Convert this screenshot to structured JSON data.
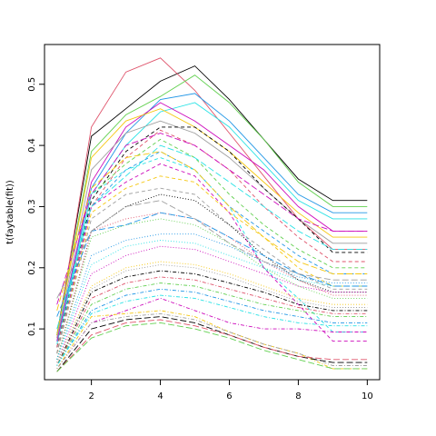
{
  "chart_data": {
    "type": "line",
    "title": "",
    "xlabel": "",
    "ylabel": "t(faytable(fit))",
    "xlim": [
      0.64,
      10.36
    ],
    "ylim": [
      0.017,
      0.565
    ],
    "x": [
      1,
      2,
      3,
      4,
      5,
      6,
      7,
      8,
      9,
      10
    ],
    "x_ticks": [
      2,
      4,
      6,
      8,
      10
    ],
    "y_ticks": [
      0.1,
      0.2,
      0.3,
      0.4,
      0.5
    ],
    "grid": false,
    "legend": "none",
    "palette": [
      "#000000",
      "#DF536B",
      "#61D04F",
      "#2297E6",
      "#28E2E5",
      "#CD0BBC",
      "#F5C710",
      "#9E9E9E"
    ],
    "styles": [
      "solid",
      "dashed",
      "dotted",
      "dotdash",
      "longdash",
      "twodash"
    ],
    "series": [
      {
        "values": [
          0.09,
          0.415,
          0.46,
          0.505,
          0.53,
          0.475,
          0.41,
          0.345,
          0.31,
          0.31
        ]
      },
      {
        "values": [
          0.085,
          0.43,
          0.52,
          0.543,
          0.49,
          0.42,
          0.35,
          0.28,
          0.23,
          0.23
        ]
      },
      {
        "values": [
          0.09,
          0.39,
          0.45,
          0.48,
          0.515,
          0.47,
          0.41,
          0.34,
          0.3,
          0.3
        ]
      },
      {
        "values": [
          0.08,
          0.33,
          0.42,
          0.475,
          0.485,
          0.44,
          0.38,
          0.32,
          0.29,
          0.29
        ]
      },
      {
        "values": [
          0.075,
          0.32,
          0.4,
          0.455,
          0.47,
          0.43,
          0.37,
          0.31,
          0.28,
          0.28
        ]
      },
      {
        "values": [
          0.08,
          0.34,
          0.43,
          0.47,
          0.44,
          0.4,
          0.36,
          0.3,
          0.26,
          0.26
        ]
      },
      {
        "values": [
          0.09,
          0.38,
          0.44,
          0.46,
          0.43,
          0.39,
          0.34,
          0.29,
          0.25,
          0.25
        ]
      },
      {
        "values": [
          0.085,
          0.36,
          0.42,
          0.44,
          0.42,
          0.38,
          0.33,
          0.28,
          0.24,
          0.24
        ]
      },
      {
        "values": [
          0.07,
          0.31,
          0.39,
          0.43,
          0.43,
          0.39,
          0.33,
          0.28,
          0.225,
          0.225
        ]
      },
      {
        "values": [
          0.07,
          0.3,
          0.38,
          0.425,
          0.4,
          0.36,
          0.3,
          0.25,
          0.21,
          0.21
        ]
      },
      {
        "values": [
          0.06,
          0.32,
          0.37,
          0.41,
          0.38,
          0.32,
          0.27,
          0.23,
          0.2,
          0.2
        ]
      },
      {
        "values": [
          0.06,
          0.3,
          0.36,
          0.39,
          0.36,
          0.3,
          0.26,
          0.22,
          0.19,
          0.19
        ]
      },
      {
        "values": [
          0.06,
          0.32,
          0.36,
          0.38,
          0.36,
          0.3,
          0.2,
          0.15,
          0.095,
          0.095
        ]
      },
      {
        "values": [
          0.06,
          0.3,
          0.34,
          0.37,
          0.35,
          0.29,
          0.2,
          0.14,
          0.08,
          0.08
        ]
      },
      {
        "values": [
          0.06,
          0.29,
          0.33,
          0.35,
          0.34,
          0.29,
          0.25,
          0.2,
          0.17,
          0.17
        ]
      },
      {
        "values": [
          0.06,
          0.28,
          0.32,
          0.33,
          0.32,
          0.27,
          0.23,
          0.19,
          0.165,
          0.165
        ]
      },
      {
        "values": [
          0.05,
          0.26,
          0.3,
          0.32,
          0.31,
          0.27,
          0.22,
          0.18,
          0.16,
          0.16
        ]
      },
      {
        "values": [
          0.05,
          0.26,
          0.28,
          0.29,
          0.28,
          0.25,
          0.21,
          0.18,
          0.155,
          0.155
        ]
      },
      {
        "values": [
          0.05,
          0.25,
          0.27,
          0.28,
          0.27,
          0.24,
          0.2,
          0.17,
          0.15,
          0.15
        ]
      },
      {
        "values": [
          0.05,
          0.22,
          0.245,
          0.255,
          0.255,
          0.235,
          0.21,
          0.185,
          0.175,
          0.175
        ]
      },
      {
        "values": [
          0.05,
          0.205,
          0.235,
          0.245,
          0.24,
          0.22,
          0.2,
          0.18,
          0.17,
          0.17
        ]
      },
      {
        "values": [
          0.045,
          0.19,
          0.22,
          0.235,
          0.23,
          0.21,
          0.19,
          0.17,
          0.16,
          0.16
        ]
      },
      {
        "values": [
          0.045,
          0.17,
          0.2,
          0.21,
          0.205,
          0.19,
          0.17,
          0.15,
          0.14,
          0.14
        ]
      },
      {
        "values": [
          0.045,
          0.165,
          0.195,
          0.205,
          0.2,
          0.185,
          0.165,
          0.145,
          0.135,
          0.135
        ]
      },
      {
        "values": [
          0.04,
          0.16,
          0.185,
          0.195,
          0.19,
          0.175,
          0.16,
          0.14,
          0.13,
          0.13
        ]
      },
      {
        "values": [
          0.04,
          0.15,
          0.175,
          0.185,
          0.18,
          0.165,
          0.15,
          0.135,
          0.125,
          0.125
        ]
      },
      {
        "values": [
          0.04,
          0.14,
          0.165,
          0.175,
          0.17,
          0.155,
          0.14,
          0.13,
          0.12,
          0.12
        ]
      },
      {
        "values": [
          0.04,
          0.13,
          0.155,
          0.165,
          0.16,
          0.145,
          0.13,
          0.12,
          0.11,
          0.11
        ]
      },
      {
        "values": [
          0.04,
          0.125,
          0.145,
          0.155,
          0.15,
          0.135,
          0.12,
          0.11,
          0.105,
          0.105
        ]
      },
      {
        "values": [
          0.035,
          0.11,
          0.13,
          0.15,
          0.13,
          0.11,
          0.1,
          0.1,
          0.095,
          0.095
        ]
      },
      {
        "values": [
          0.035,
          0.12,
          0.125,
          0.13,
          0.12,
          0.095,
          0.075,
          0.06,
          0.035,
          0.035
        ]
      },
      {
        "values": [
          0.035,
          0.11,
          0.12,
          0.125,
          0.115,
          0.095,
          0.075,
          0.06,
          0.04,
          0.04
        ]
      },
      {
        "values": [
          0.03,
          0.1,
          0.115,
          0.12,
          0.11,
          0.09,
          0.07,
          0.055,
          0.045,
          0.045
        ]
      },
      {
        "values": [
          0.03,
          0.09,
          0.11,
          0.115,
          0.105,
          0.09,
          0.07,
          0.055,
          0.05,
          0.05
        ]
      },
      {
        "values": [
          0.03,
          0.085,
          0.105,
          0.11,
          0.1,
          0.085,
          0.065,
          0.05,
          0.035,
          0.035
        ]
      },
      {
        "values": [
          0.12,
          0.26,
          0.27,
          0.29,
          0.28,
          0.25,
          0.22,
          0.19,
          0.17,
          0.17
        ]
      },
      {
        "values": [
          0.1,
          0.3,
          0.35,
          0.4,
          0.38,
          0.34,
          0.3,
          0.26,
          0.23,
          0.23
        ]
      },
      {
        "values": [
          0.14,
          0.32,
          0.4,
          0.42,
          0.4,
          0.36,
          0.32,
          0.28,
          0.26,
          0.26
        ]
      },
      {
        "values": [
          0.13,
          0.33,
          0.38,
          0.39,
          0.36,
          0.3,
          0.25,
          0.21,
          0.19,
          0.19
        ]
      },
      {
        "values": [
          0.15,
          0.26,
          0.3,
          0.31,
          0.28,
          0.24,
          0.21,
          0.19,
          0.18,
          0.18
        ]
      }
    ]
  }
}
